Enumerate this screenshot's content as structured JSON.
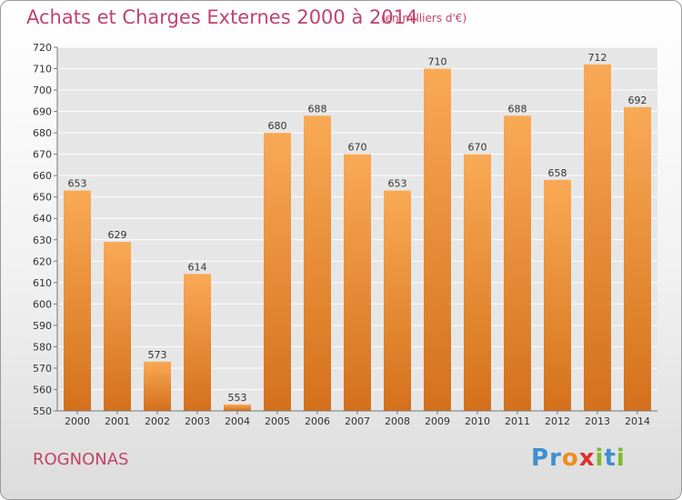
{
  "header": {
    "title": "Achats et Charges Externes 2000 à 2014",
    "subtitle": "(en milliers d'€)"
  },
  "footer": {
    "commune": "ROGNONAS",
    "logo_letters": [
      {
        "char": "P",
        "color": "#3f8fd0"
      },
      {
        "char": "r",
        "color": "#3f8fd0"
      },
      {
        "char": "o",
        "color": "#f08c1e"
      },
      {
        "char": "x",
        "color": "#d9332e"
      },
      {
        "char": "i",
        "color": "#7cba2b"
      },
      {
        "char": "t",
        "color": "#3f8fd0"
      },
      {
        "char": "i",
        "color": "#7cba2b"
      }
    ]
  },
  "chart_data": {
    "type": "bar",
    "categories": [
      "2000",
      "2001",
      "2002",
      "2003",
      "2004",
      "2005",
      "2006",
      "2007",
      "2008",
      "2009",
      "2010",
      "2011",
      "2012",
      "2013",
      "2014"
    ],
    "values": [
      653,
      629,
      573,
      614,
      553,
      680,
      688,
      670,
      653,
      710,
      670,
      688,
      658,
      712,
      692
    ],
    "ylim": [
      550,
      720
    ],
    "yticks": [
      550,
      560,
      570,
      580,
      590,
      600,
      610,
      620,
      630,
      640,
      650,
      660,
      670,
      680,
      690,
      700,
      710,
      720
    ],
    "grid": true,
    "bar_color_top": "#f9a955",
    "bar_color_bottom": "#d4701c",
    "title": "Achats et Charges Externes 2000 à 2014",
    "xlabel": "",
    "ylabel": ""
  }
}
